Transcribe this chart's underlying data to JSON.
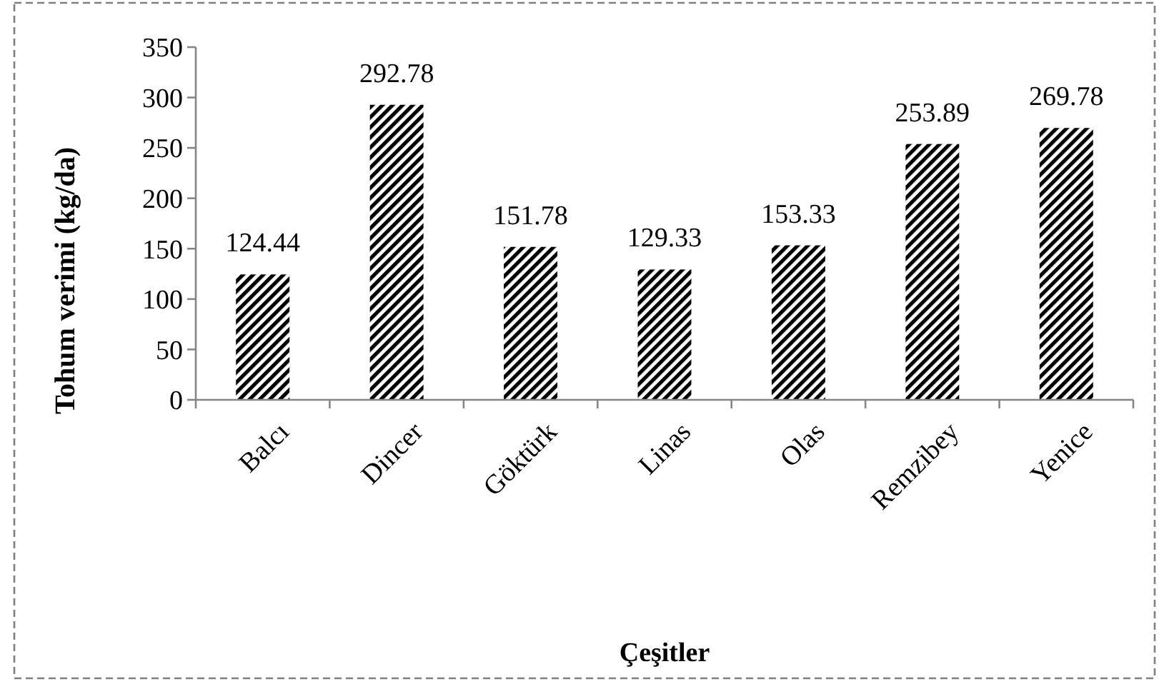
{
  "chart_data": {
    "type": "bar",
    "xlabel": "Çeşitler",
    "ylabel": "Tohum verimi (kg/da)",
    "categories": [
      "Balcı",
      "Dincer",
      "Göktürk",
      "Linas",
      "Olas",
      "Remzibey",
      "Yenice"
    ],
    "values": [
      124.44,
      292.78,
      151.78,
      129.33,
      153.33,
      253.89,
      269.78
    ],
    "color": "#000000",
    "ylim": [
      0,
      350
    ],
    "yticks": [
      0,
      50,
      100,
      150,
      200,
      250,
      300,
      350
    ],
    "data_labels": true,
    "grid": false
  }
}
